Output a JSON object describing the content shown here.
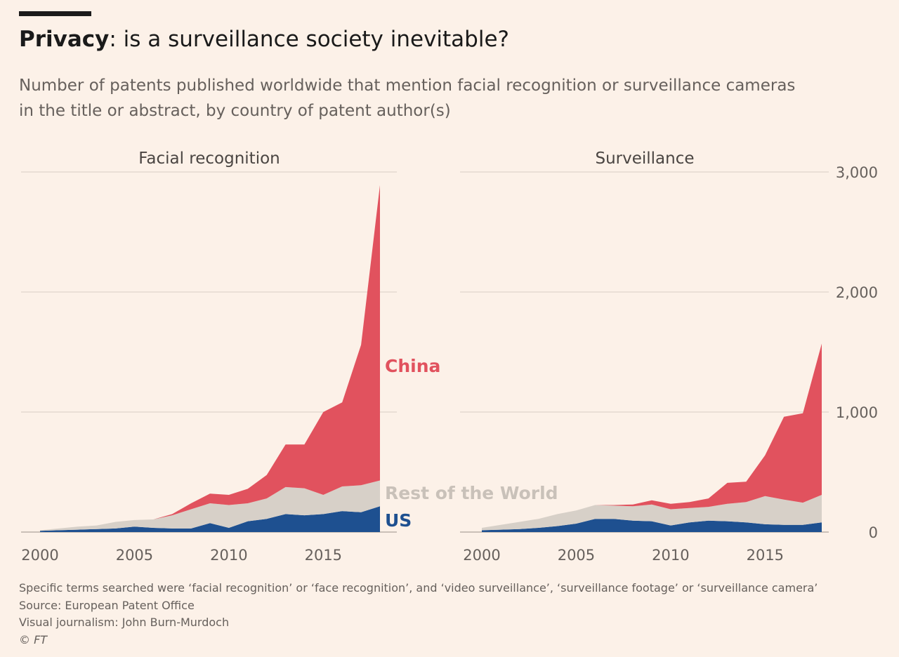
{
  "header": {
    "title_bold": "Privacy",
    "title_rest": ": is a surveillance society inevitable?",
    "subtitle_lines": [
      "Number of patents published worldwide that mention facial recognition or surveillance cameras",
      "in the title or abstract, by country of patent author(s)"
    ]
  },
  "colors": {
    "china": "#e1525e",
    "rest": "#d7d0c8",
    "us": "#1e5090",
    "grid": "#e3d9d0",
    "text": "#66605c"
  },
  "chart_data": {
    "type": "area",
    "stacked": true,
    "x": [
      2000,
      2001,
      2002,
      2003,
      2004,
      2005,
      2006,
      2007,
      2008,
      2009,
      2010,
      2011,
      2012,
      2013,
      2014,
      2015,
      2016,
      2017,
      2018
    ],
    "ylim": [
      0,
      3000
    ],
    "yticks": [
      "0",
      "1,000",
      "2,000",
      "3,000"
    ],
    "ytick_values": [
      0,
      1000,
      2000,
      3000
    ],
    "xticks": [
      "2000",
      "2005",
      "2010",
      "2015"
    ],
    "xtick_values": [
      2000,
      2005,
      2010,
      2015
    ],
    "grid": true,
    "legend_labels": [
      "China",
      "Rest of the World",
      "US"
    ],
    "panels": [
      {
        "title": "Facial recognition",
        "series": [
          {
            "name": "US",
            "values": [
              10,
              15,
              20,
              25,
              30,
              45,
              35,
              30,
              30,
              75,
              35,
              90,
              110,
              150,
              140,
              150,
              175,
              165,
              215
            ]
          },
          {
            "name": "Rest of the World",
            "values": [
              5,
              15,
              25,
              30,
              55,
              55,
              70,
              110,
              160,
              165,
              190,
              150,
              170,
              225,
              225,
              160,
              205,
              225,
              215
            ]
          },
          {
            "name": "China",
            "values": [
              0,
              0,
              0,
              0,
              0,
              0,
              0,
              10,
              50,
              80,
              85,
              120,
              195,
              355,
              365,
              690,
              700,
              1170,
              2460
            ]
          }
        ]
      },
      {
        "title": "Surveillance",
        "series": [
          {
            "name": "US",
            "values": [
              15,
              20,
              25,
              35,
              50,
              70,
              110,
              110,
              95,
              90,
              55,
              80,
              95,
              90,
              80,
              65,
              60,
              60,
              80
            ]
          },
          {
            "name": "Rest of the World",
            "values": [
              20,
              40,
              60,
              75,
              100,
              110,
              115,
              110,
              120,
              140,
              135,
              120,
              115,
              145,
              170,
              235,
              210,
              185,
              230
            ]
          },
          {
            "name": "China",
            "values": [
              0,
              0,
              0,
              0,
              0,
              0,
              0,
              5,
              15,
              35,
              45,
              50,
              70,
              175,
              170,
              340,
              690,
              745,
              1260
            ]
          }
        ]
      }
    ]
  },
  "footer": {
    "note": "Specific terms searched were ‘facial recognition’ or ‘face recognition’, and ‘video surveillance’, ‘surveillance footage’ or ‘surveillance camera’",
    "source": "Source: European Patent Office",
    "credit": "Visual journalism: John Burn-Murdoch",
    "copyright": "© FT"
  }
}
